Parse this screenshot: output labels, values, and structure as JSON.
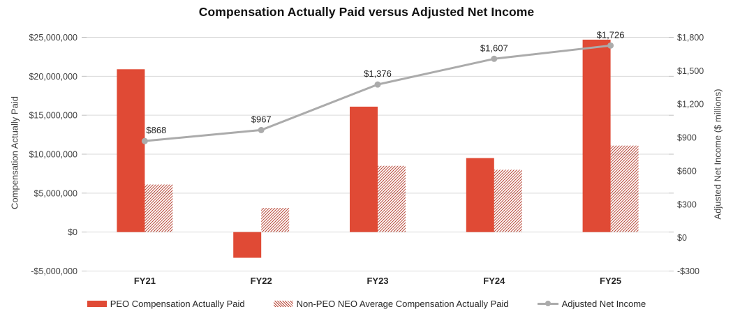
{
  "chart_data": {
    "type": "bar",
    "subtype": "dual-axis combo: clustered bars (left axis) + line with markers (right axis)",
    "title": "Compensation Actually Paid versus Adjusted Net Income",
    "categories": [
      "FY21",
      "FY22",
      "FY23",
      "FY24",
      "FY25"
    ],
    "series": [
      {
        "name": "PEO Compensation Actually Paid",
        "type": "bar",
        "axis": "left",
        "style": "solid",
        "values": [
          20900000,
          -3300000,
          16100000,
          9500000,
          24700000
        ]
      },
      {
        "name": "Non-PEO NEO Average Compensation Actually Paid",
        "type": "bar",
        "axis": "left",
        "style": "hatched",
        "values": [
          6100000,
          3100000,
          8500000,
          8000000,
          11100000
        ]
      },
      {
        "name": "Adjusted Net Income",
        "type": "line",
        "axis": "right",
        "values": [
          868,
          967,
          1376,
          1607,
          1726
        ],
        "point_labels": [
          "$868",
          "$967",
          "$1,376",
          "$1,607",
          "$1,726"
        ]
      }
    ],
    "left_axis": {
      "title": "Compensation Actually Paid",
      "min": -5000000,
      "max": 25000000,
      "tick_labels": [
        "$25,000,000",
        "$20,000,000",
        "$15,000,000",
        "$10,000,000",
        "$5,000,000",
        "$0",
        "-$5,000,000"
      ]
    },
    "right_axis": {
      "title": "Adjusted Net Income ($ millions)",
      "min": -300,
      "max": 1800,
      "tick_labels": [
        "$1,800",
        "$1,500",
        "$1,200",
        "$900",
        "$600",
        "$300",
        "$0",
        "-$300"
      ]
    },
    "grid": true,
    "legend_position": "bottom",
    "colors": {
      "bar_solid": "#E04A35",
      "bar_hatch": "#B94A3B",
      "line": "#ABABAB",
      "gridline": "#D9D9D9",
      "tick_mark": "#BFBFBF",
      "tick_text": "#404040",
      "label_text": "#262626",
      "title_text": "#111111"
    }
  }
}
